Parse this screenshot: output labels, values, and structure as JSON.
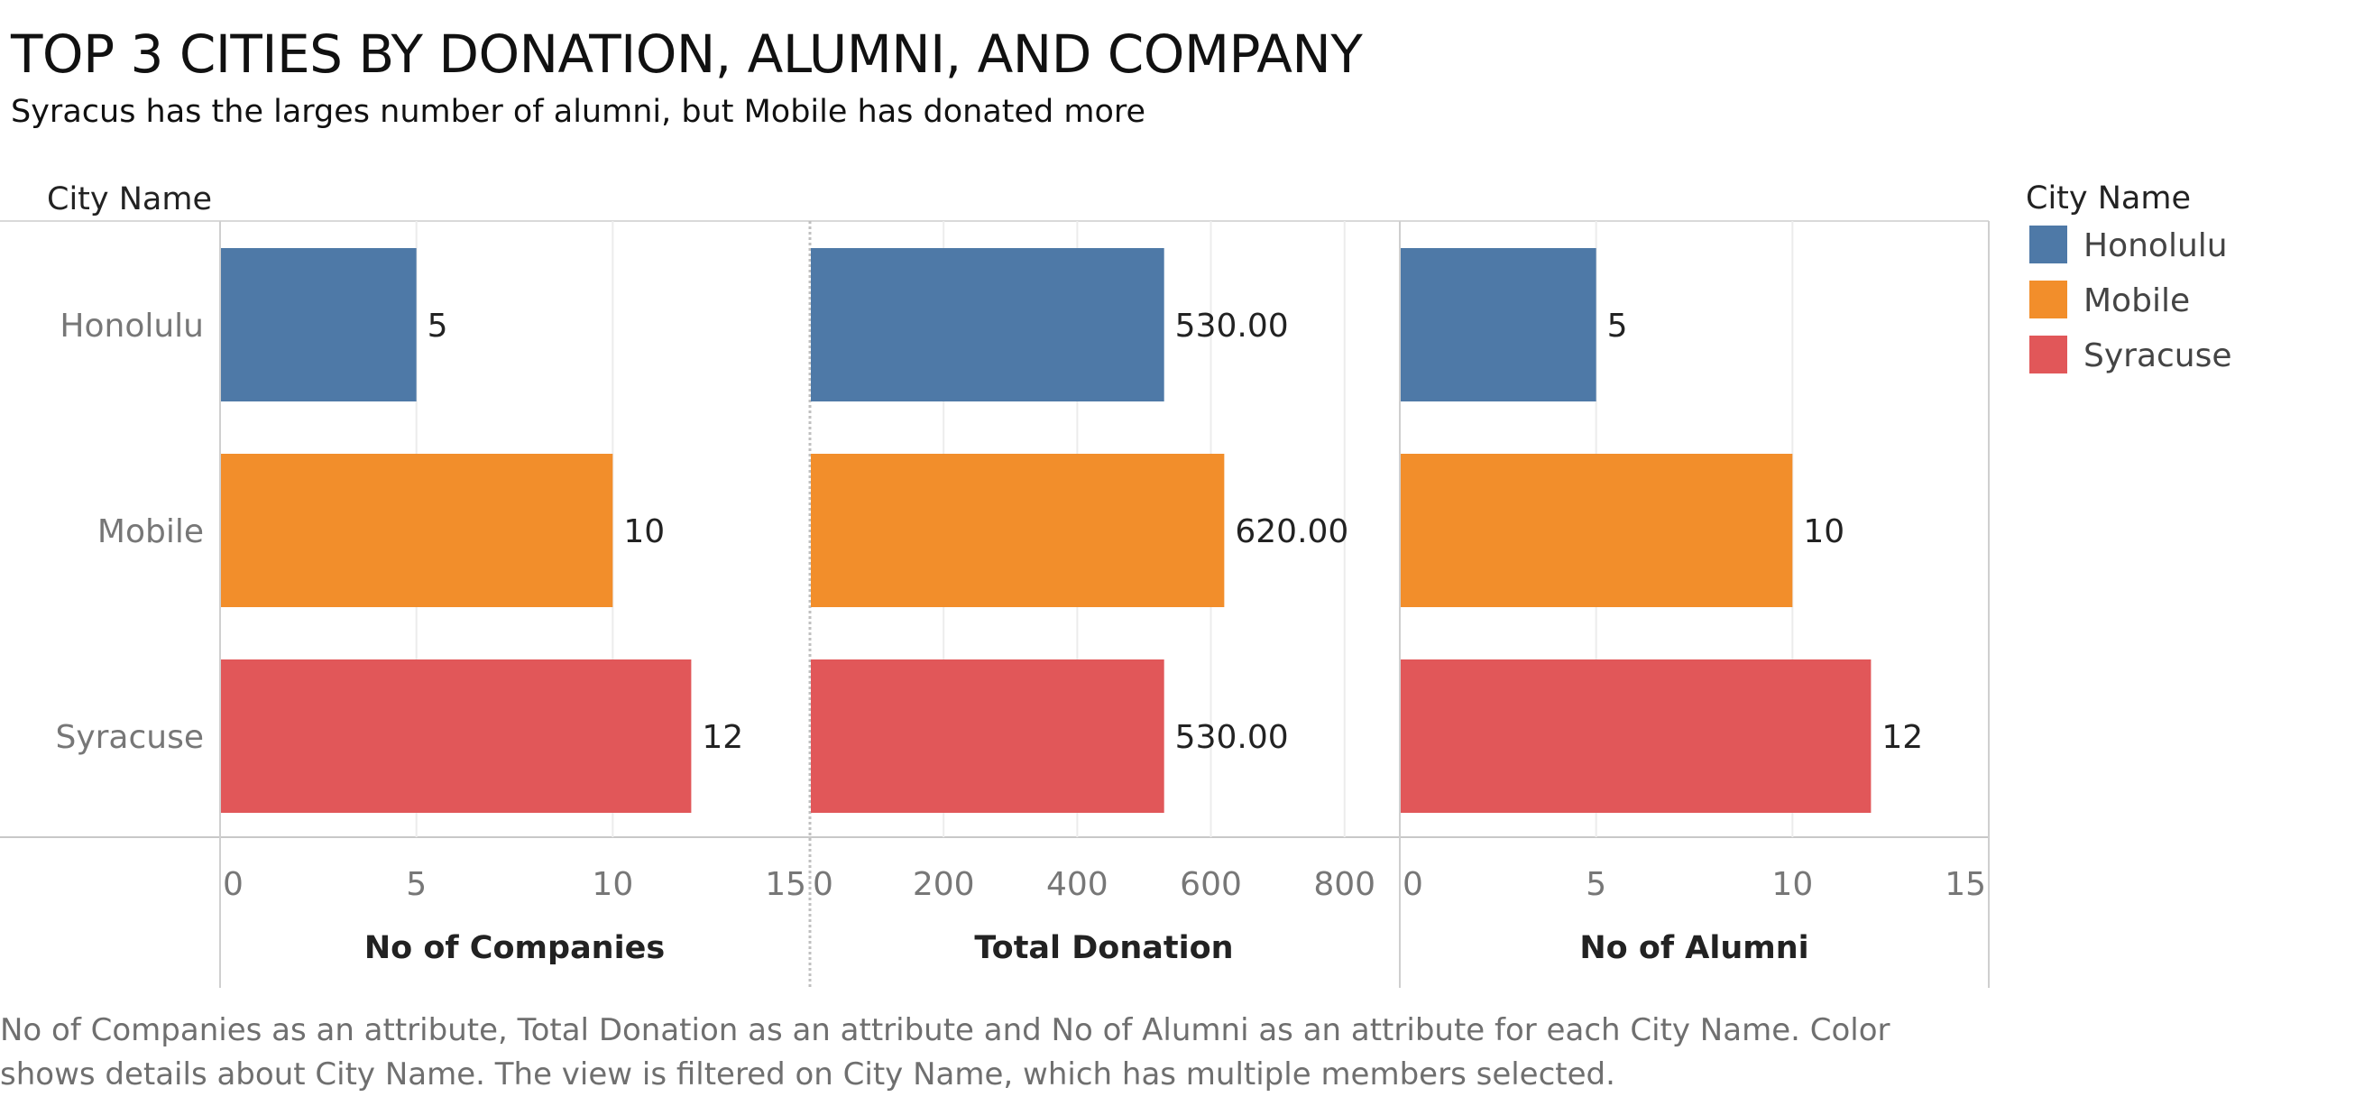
{
  "title": "TOP 3 CITIES BY DONATION, ALUMNI, AND COMPANY",
  "subtitle": "Syracus has the larges number of alumni, but Mobile has donated more",
  "footer": "No of Companies as an attribute, Total Donation as an attribute and No of Alumni as an attribute for each City Name.  Color shows details about City Name. The view is filtered on City Name, which has multiple members selected.",
  "chart_data": {
    "type": "bar",
    "orientation": "horizontal",
    "row_header": "City Name",
    "categories": [
      "Honolulu",
      "Mobile",
      "Syracuse"
    ],
    "colors": {
      "Honolulu": "#4e79a7",
      "Mobile": "#f28e2b",
      "Syracuse": "#e15759"
    },
    "panels": [
      {
        "xlabel": "No of Companies",
        "values": [
          5,
          10,
          12
        ],
        "value_labels": [
          "5",
          "10",
          "12"
        ],
        "xlim": [
          0,
          15
        ],
        "ticks": [
          0,
          5,
          10,
          15
        ]
      },
      {
        "xlabel": "Total Donation",
        "values": [
          530,
          620,
          530
        ],
        "value_labels": [
          "530.00",
          "620.00",
          "530.00"
        ],
        "xlim": [
          0,
          880
        ],
        "ticks": [
          0,
          200,
          400,
          600,
          800
        ]
      },
      {
        "xlabel": "No of Alumni",
        "values": [
          5,
          10,
          12
        ],
        "value_labels": [
          "5",
          "10",
          "12"
        ],
        "xlim": [
          0,
          15
        ],
        "ticks": [
          0,
          5,
          10,
          15
        ]
      }
    ],
    "legend": {
      "title": "City Name",
      "position": "right",
      "items": [
        "Honolulu",
        "Mobile",
        "Syracuse"
      ]
    },
    "grid": true
  }
}
